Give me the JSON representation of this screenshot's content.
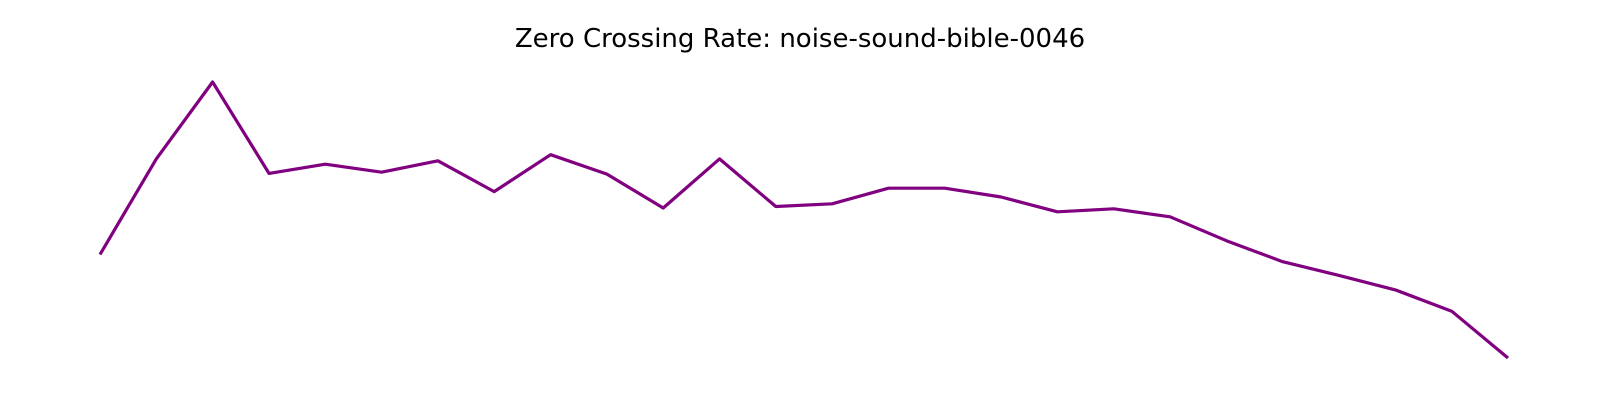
{
  "chart_data": {
    "type": "line",
    "title": "Zero Crossing Rate: noise-sound-bible-0046",
    "xlabel": "",
    "ylabel": "",
    "axes_visible": false,
    "grid": false,
    "legend": "none",
    "x": [
      0,
      1,
      2,
      3,
      4,
      5,
      6,
      7,
      8,
      9,
      10,
      11,
      12,
      13,
      14,
      15,
      16,
      17,
      18,
      19,
      20,
      21,
      22,
      23,
      24,
      25
    ],
    "series": [
      {
        "color": "#800080",
        "values": [
          0.272,
          0.523,
          0.725,
          0.485,
          0.509,
          0.488,
          0.518,
          0.437,
          0.534,
          0.483,
          0.394,
          0.523,
          0.398,
          0.405,
          0.446,
          0.446,
          0.423,
          0.384,
          0.392,
          0.371,
          0.308,
          0.253,
          0.217,
          0.179,
          0.123,
          0.0
        ]
      }
    ],
    "xlim": [
      0,
      25
    ],
    "ylim": [
      0,
      0.725
    ]
  }
}
